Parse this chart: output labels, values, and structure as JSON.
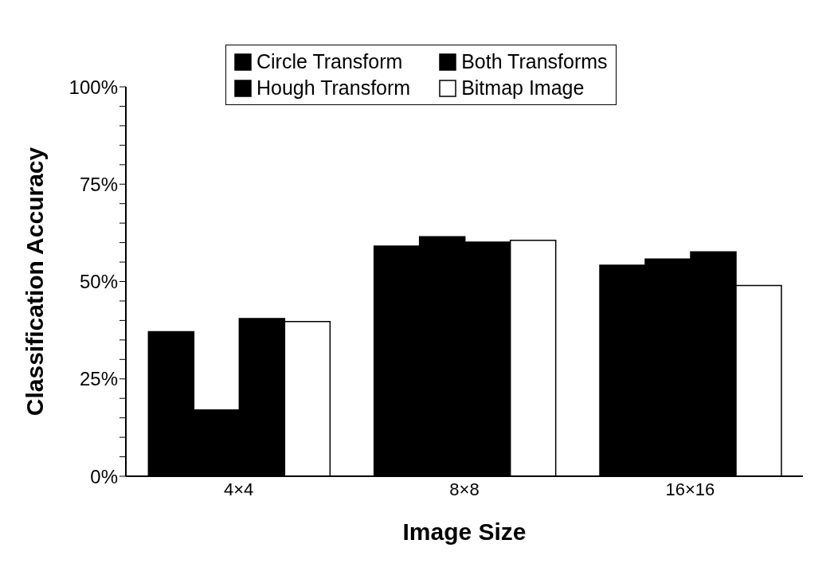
{
  "chart_data": {
    "type": "bar",
    "xlabel": "Image Size",
    "ylabel": "Classification Accuracy",
    "categories": [
      "4×4",
      "8×8",
      "16×16"
    ],
    "series": [
      {
        "name": "Circle Transform",
        "color": "#000000",
        "values": [
          37.1,
          59.1,
          54.2
        ]
      },
      {
        "name": "Hough Transform",
        "color": "#000000",
        "values": [
          17.0,
          61.5,
          55.8
        ]
      },
      {
        "name": "Both Transforms",
        "color": "#000000",
        "values": [
          40.5,
          60.1,
          57.6
        ]
      },
      {
        "name": "Bitmap Image",
        "color": "#ffffff",
        "values": [
          39.7,
          60.6,
          49.0
        ]
      }
    ],
    "ylim": [
      0,
      100
    ],
    "yticks": [
      {
        "value": 0,
        "label": "0%"
      },
      {
        "value": 5,
        "label": null
      },
      {
        "value": 10,
        "label": null
      },
      {
        "value": 15,
        "label": null
      },
      {
        "value": 20,
        "label": null
      },
      {
        "value": 25,
        "label": "25%"
      },
      {
        "value": 30,
        "label": null
      },
      {
        "value": 35,
        "label": null
      },
      {
        "value": 40,
        "label": null
      },
      {
        "value": 45,
        "label": null
      },
      {
        "value": 50,
        "label": "50%"
      },
      {
        "value": 55,
        "label": null
      },
      {
        "value": 60,
        "label": null
      },
      {
        "value": 65,
        "label": null
      },
      {
        "value": 70,
        "label": null
      },
      {
        "value": 75,
        "label": "75%"
      },
      {
        "value": 80,
        "label": null
      },
      {
        "value": 85,
        "label": null
      },
      {
        "value": 90,
        "label": null
      },
      {
        "value": 95,
        "label": null
      },
      {
        "value": 100,
        "label": "100%"
      }
    ],
    "legend": "top"
  }
}
